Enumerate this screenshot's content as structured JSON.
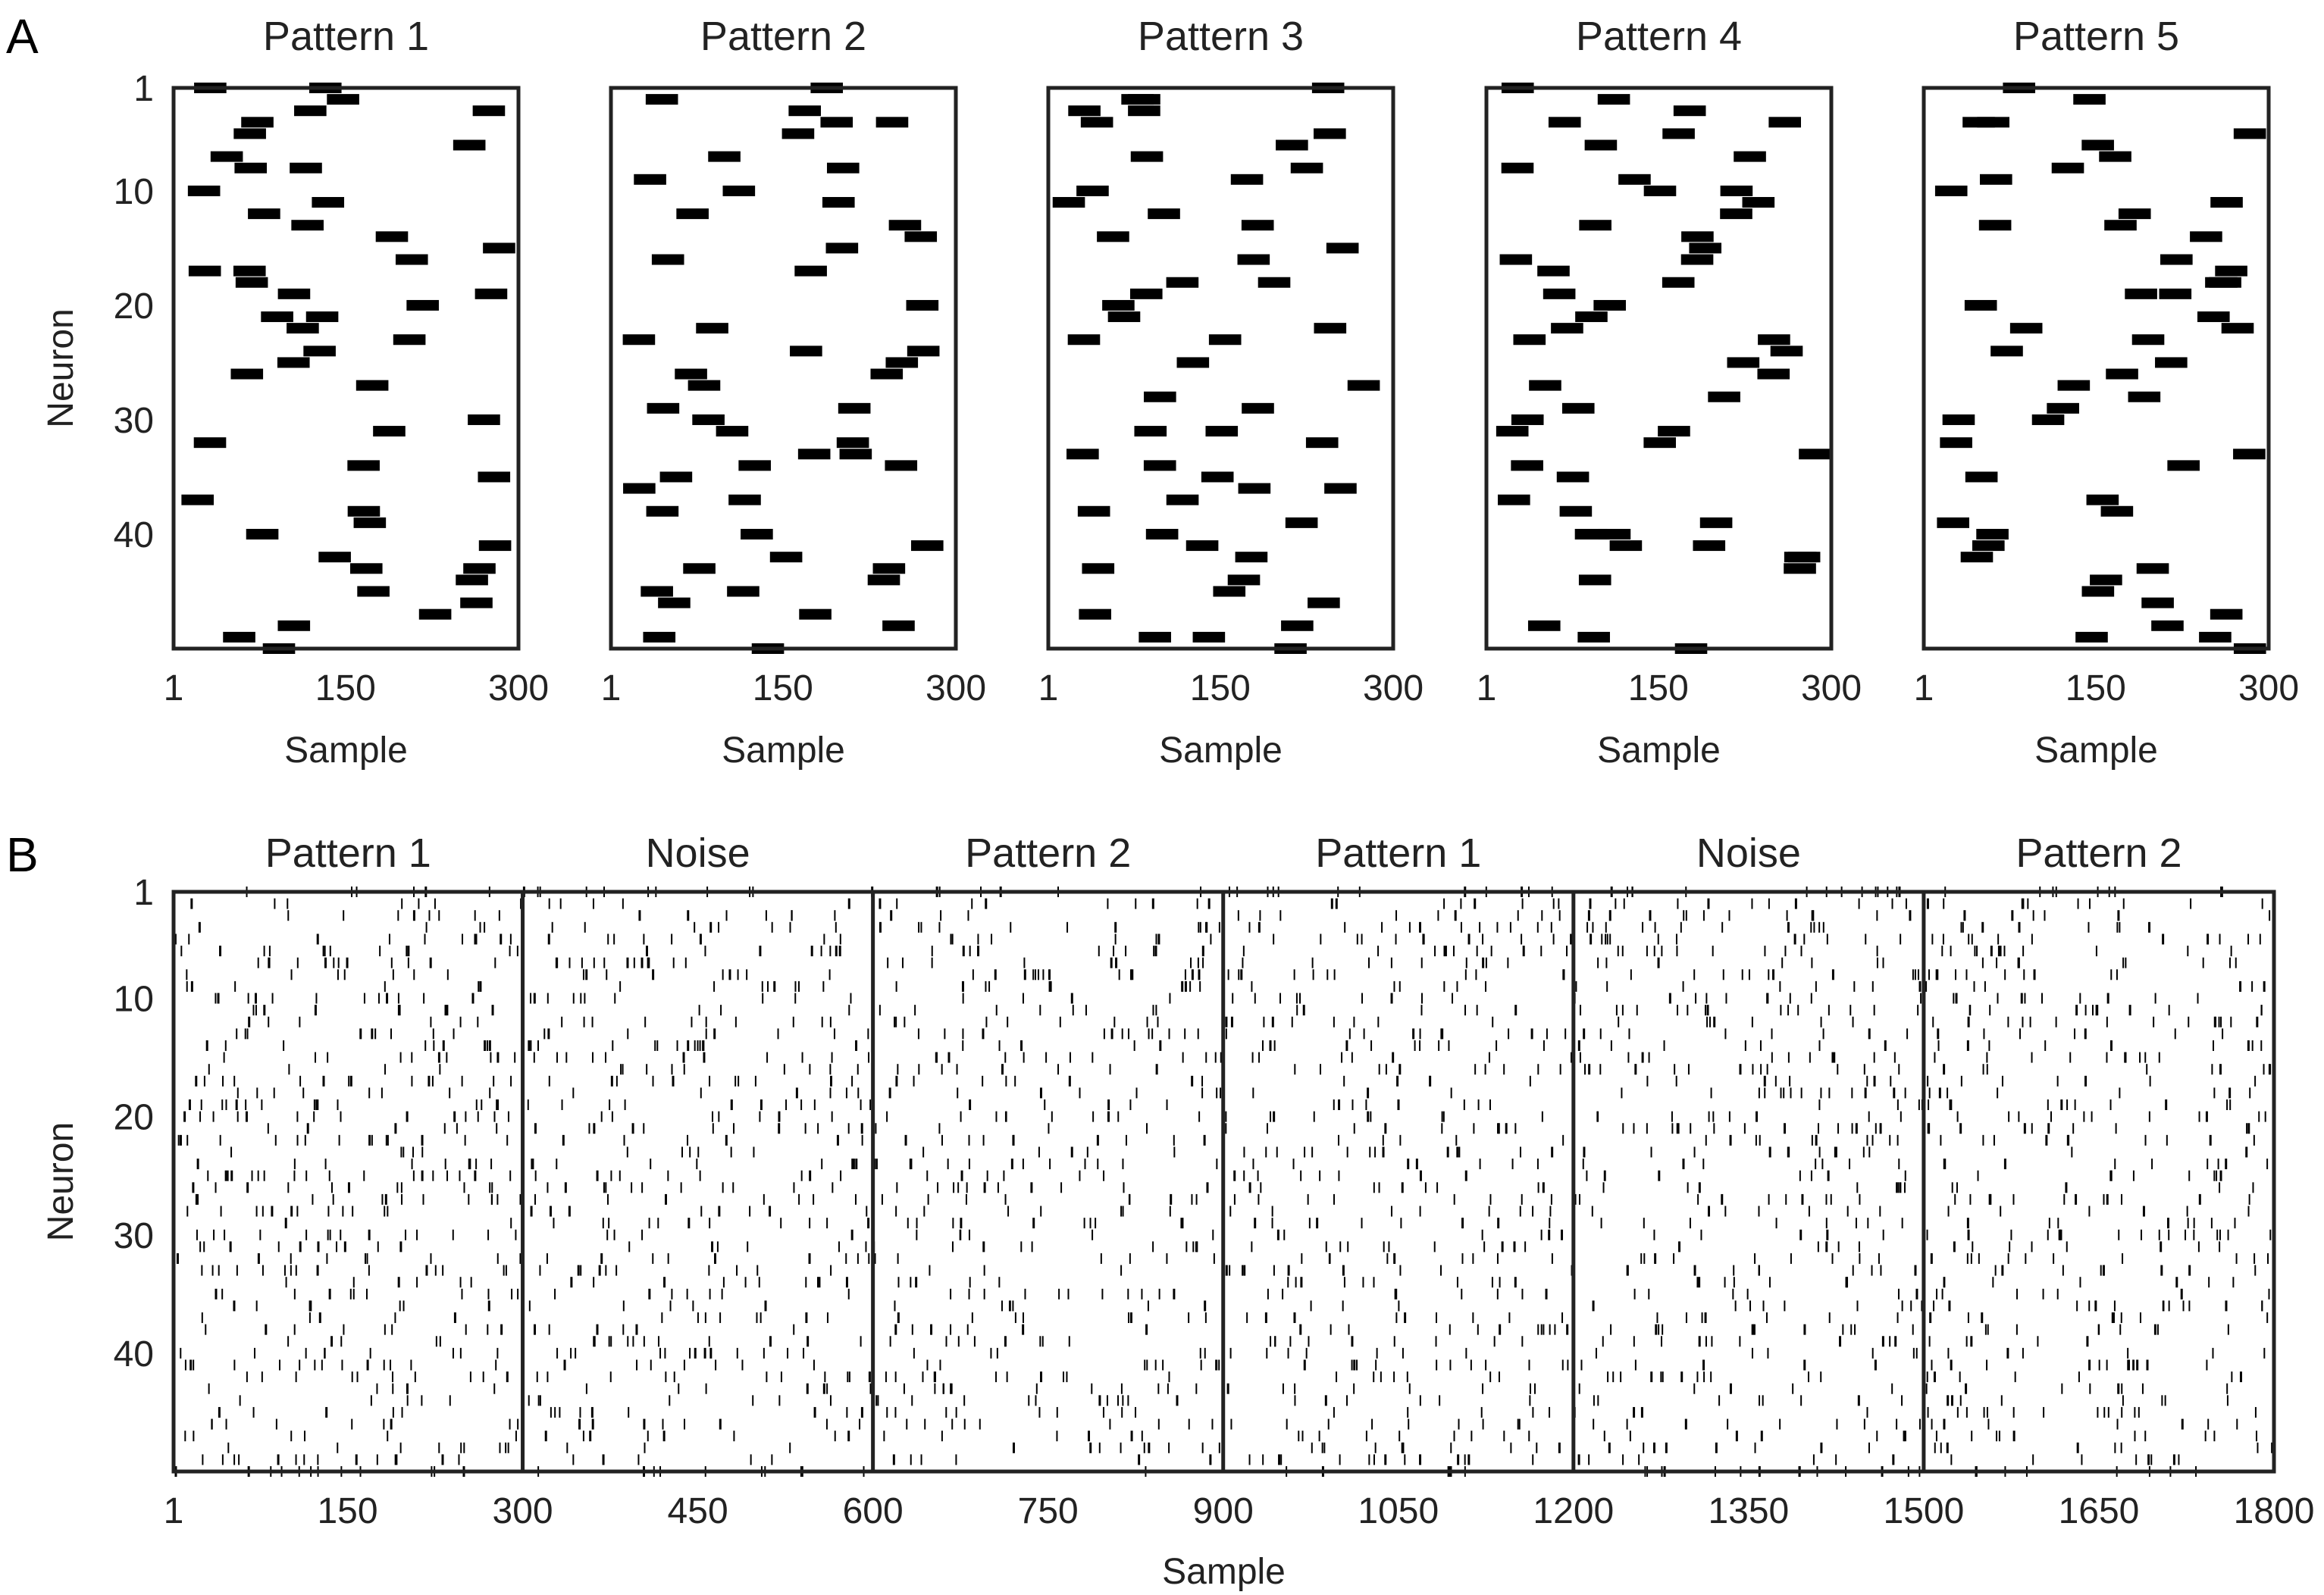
{
  "panel_labels": [
    "A",
    "B"
  ],
  "colors": {
    "mark": "#000000",
    "frame": "#222222",
    "text": "#222222",
    "background": "#ffffff"
  },
  "chart_data": [
    {
      "panel": "A",
      "type": "scatter",
      "subtype": "spike-raster",
      "subplots": [
        {
          "title": "Pattern 1"
        },
        {
          "title": "Pattern 2"
        },
        {
          "title": "Pattern 3"
        },
        {
          "title": "Pattern 4"
        },
        {
          "title": "Pattern 5"
        }
      ],
      "xlabel": "Sample",
      "ylabel": "Neuron",
      "xlim": [
        1,
        300
      ],
      "ylim": [
        1,
        50
      ],
      "y_inverted": true,
      "xticks": [
        "1",
        "150",
        "300"
      ],
      "yticks": [
        "1",
        "10",
        "20",
        "30",
        "40"
      ],
      "ytick_values": [
        1,
        10,
        20,
        30,
        40
      ],
      "grid": false,
      "spike_length_samples": 28,
      "neurons_count": 50,
      "spikes_per_neuron_approx": 1
    },
    {
      "panel": "B",
      "type": "scatter",
      "subtype": "spike-raster",
      "segments": [
        {
          "title": "Pattern 1",
          "range": [
            1,
            300
          ]
        },
        {
          "title": "Noise",
          "range": [
            300,
            600
          ]
        },
        {
          "title": "Pattern 2",
          "range": [
            600,
            900
          ]
        },
        {
          "title": "Pattern 1",
          "range": [
            900,
            1200
          ]
        },
        {
          "title": "Noise",
          "range": [
            1200,
            1500
          ]
        },
        {
          "title": "Pattern 2",
          "range": [
            1500,
            1800
          ]
        }
      ],
      "xlabel": "Sample",
      "ylabel": "Neuron",
      "xlim": [
        1,
        1800
      ],
      "ylim": [
        1,
        50
      ],
      "y_inverted": true,
      "xticks": [
        "1",
        "150",
        "300",
        "450",
        "600",
        "750",
        "900",
        "1050",
        "1200",
        "1350",
        "1500",
        "1650",
        "1800"
      ],
      "xtick_values": [
        1,
        150,
        300,
        450,
        600,
        750,
        900,
        1050,
        1200,
        1350,
        1500,
        1650,
        1800
      ],
      "yticks": [
        "1",
        "10",
        "20",
        "30",
        "40"
      ],
      "ytick_values": [
        1,
        10,
        20,
        30,
        40
      ],
      "grid": false,
      "segment_dividers": [
        300,
        600,
        900,
        1200,
        1500
      ],
      "approx_spikes_per_neuron_per_segment": 9
    }
  ]
}
